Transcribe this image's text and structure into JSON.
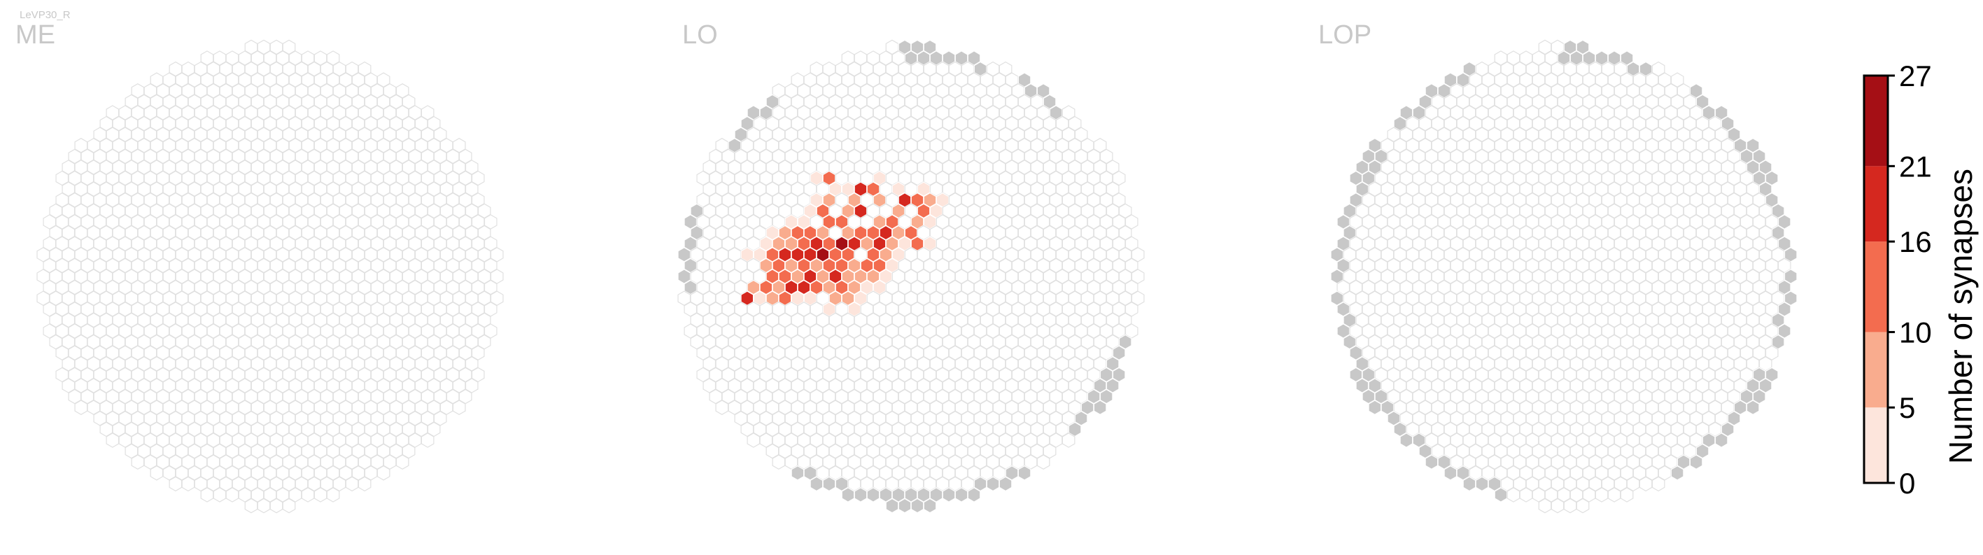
{
  "chart_data": {
    "type": "heatmap",
    "cell_type": "LeVP30_R",
    "panels": [
      {
        "title": "ME"
      },
      {
        "title": "LO"
      },
      {
        "title": "LOP"
      }
    ],
    "colorbar": {
      "label": "Number of synapses",
      "ticks": [
        "0",
        "5",
        "10",
        "16",
        "21",
        "27"
      ],
      "bin_colors": [
        "#fde5dc",
        "#f9ac8e",
        "#f36c4f",
        "#d5281f",
        "#a50f15"
      ],
      "range": [
        0,
        27
      ]
    },
    "empty_color": "#ffffff",
    "empty_stroke": "#e0e0e0",
    "out_of_region_color": "#c8c8c8",
    "lo_hot_cells": [
      [
        0,
        0,
        14
      ],
      [
        1,
        0,
        12
      ],
      [
        -1,
        0,
        10
      ],
      [
        0,
        -1,
        22
      ],
      [
        0,
        1,
        19
      ],
      [
        1,
        -1,
        16
      ],
      [
        -1,
        1,
        8
      ],
      [
        -2,
        1,
        17
      ],
      [
        -2,
        0,
        13
      ],
      [
        -2,
        -1,
        21
      ],
      [
        -3,
        0,
        9
      ],
      [
        -3,
        1,
        6
      ],
      [
        -4,
        2,
        19
      ],
      [
        -4,
        1,
        14
      ],
      [
        -5,
        1,
        12
      ],
      [
        -5,
        2,
        9
      ],
      [
        -6,
        2,
        16
      ],
      [
        -7,
        2,
        6
      ],
      [
        -6,
        3,
        8
      ],
      [
        -5,
        3,
        11
      ],
      [
        -3,
        2,
        18
      ],
      [
        -2,
        2,
        15
      ],
      [
        -1,
        2,
        7
      ],
      [
        0,
        2,
        11
      ],
      [
        1,
        1,
        15
      ],
      [
        2,
        0,
        8
      ],
      [
        2,
        -1,
        14
      ],
      [
        2,
        -2,
        23
      ],
      [
        3,
        -2,
        17
      ],
      [
        3,
        -3,
        9
      ],
      [
        1,
        -2,
        11
      ],
      [
        0,
        -2,
        18
      ],
      [
        -1,
        -2,
        13
      ],
      [
        -1,
        -1,
        17
      ],
      [
        -2,
        -2,
        10
      ],
      [
        -3,
        -1,
        20
      ],
      [
        -3,
        -2,
        8
      ],
      [
        -4,
        -1,
        16
      ],
      [
        -4,
        0,
        12
      ],
      [
        -5,
        0,
        7
      ],
      [
        4,
        -3,
        12
      ],
      [
        4,
        -2,
        9
      ],
      [
        5,
        -3,
        15
      ],
      [
        6,
        -4,
        7
      ],
      [
        6,
        -3,
        19
      ],
      [
        7,
        -4,
        11
      ],
      [
        8,
        -5,
        6
      ],
      [
        5,
        -5,
        21
      ],
      [
        4,
        -5,
        9
      ],
      [
        3,
        -4,
        13
      ],
      [
        5,
        -6,
        6
      ],
      [
        6,
        -7,
        17
      ],
      [
        7,
        -7,
        13
      ],
      [
        7,
        -6,
        8
      ],
      [
        2,
        -4,
        16
      ],
      [
        1,
        -3,
        9
      ],
      [
        0,
        -3,
        15
      ],
      [
        -1,
        -3,
        13
      ],
      [
        -2,
        -3,
        7
      ],
      [
        2,
        -5,
        12
      ],
      [
        3,
        -6,
        7
      ],
      [
        1,
        1,
        6
      ],
      [
        2,
        1,
        10
      ],
      [
        3,
        0,
        16
      ],
      [
        4,
        -1,
        11
      ],
      [
        5,
        -2,
        18
      ],
      [
        6,
        -2,
        9
      ],
      [
        7,
        -3,
        8
      ],
      [
        8,
        -3,
        12
      ],
      [
        9,
        -4,
        7
      ],
      [
        3,
        1,
        7
      ],
      [
        4,
        0,
        12
      ],
      [
        5,
        -1,
        8
      ],
      [
        -1,
        3,
        9
      ],
      [
        0,
        3,
        7
      ],
      [
        1,
        2,
        9
      ],
      [
        -7,
        3,
        5
      ],
      [
        -8,
        3,
        18
      ],
      [
        9,
        -6,
        21
      ],
      [
        10,
        -6,
        13
      ],
      [
        11,
        -6,
        10
      ],
      [
        10,
        -5,
        15
      ],
      [
        8,
        -2,
        13
      ],
      [
        9,
        -2,
        4
      ],
      [
        11,
        -5,
        4
      ],
      [
        -4,
        3,
        4
      ],
      [
        -3,
        3,
        5
      ],
      [
        2,
        2,
        4
      ],
      [
        4,
        1,
        3
      ],
      [
        6,
        -1,
        4
      ],
      [
        7,
        -2,
        3
      ],
      [
        10,
        -4,
        3
      ],
      [
        12,
        -6,
        4
      ],
      [
        11,
        -7,
        3
      ],
      [
        -6,
        -1,
        4
      ],
      [
        -5,
        -1,
        3
      ],
      [
        -4,
        -2,
        3
      ],
      [
        -3,
        -3,
        4
      ],
      [
        -1,
        -4,
        3
      ],
      [
        0,
        -4,
        4
      ],
      [
        1,
        -5,
        3
      ],
      [
        2,
        -6,
        4
      ],
      [
        4,
        -7,
        3
      ],
      [
        5,
        -7,
        4
      ],
      [
        8,
        -8,
        3
      ],
      [
        9,
        -7,
        4
      ],
      [
        4,
        -8,
        14
      ],
      [
        3,
        -8,
        3
      ],
      [
        -2,
        4,
        3
      ],
      [
        0,
        4,
        3
      ],
      [
        1,
        3,
        4
      ],
      [
        3,
        2,
        3
      ],
      [
        5,
        0,
        3
      ]
    ]
  }
}
